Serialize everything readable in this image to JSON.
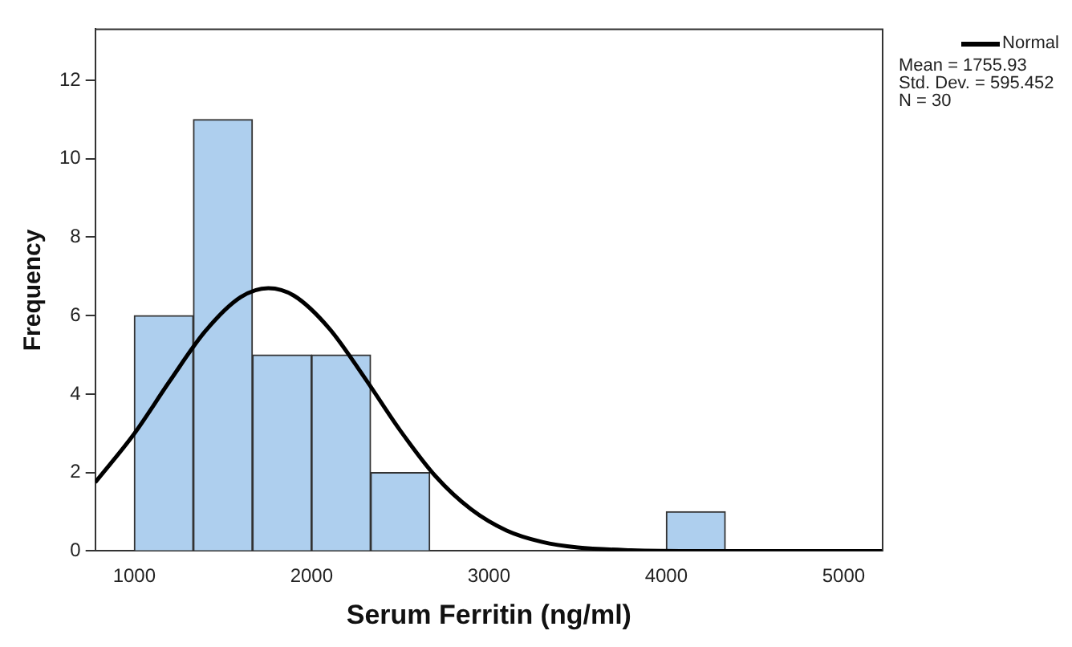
{
  "chart_data": {
    "type": "histogram",
    "xlabel": "Serum Ferritin (ng/ml)",
    "ylabel": "Frequency",
    "bins": [
      1000,
      1333,
      1667,
      2000,
      2333,
      2667,
      3000,
      3333,
      3667,
      4000,
      4333
    ],
    "values": [
      6,
      11,
      5,
      5,
      2,
      0,
      0,
      0,
      0,
      1
    ],
    "color": "#aecfee",
    "series": [
      {
        "type": "line",
        "name": "Normal",
        "color": "#000000",
        "x": [
          780,
          1000,
          1200,
          1400,
          1600,
          1756,
          1900,
          2100,
          2300,
          2500,
          2700,
          2900,
          3100,
          3300,
          3500,
          3800,
          4200,
          4700,
          5220
        ],
        "values": [
          1.75,
          2.99,
          4.33,
          5.6,
          6.47,
          6.7,
          6.51,
          5.67,
          4.41,
          3.07,
          1.9,
          1.06,
          0.52,
          0.23,
          0.09,
          0.02,
          0,
          0,
          0
        ]
      }
    ],
    "xlim": [
      780,
      5220
    ],
    "xticks": [
      1000,
      2000,
      3000,
      4000,
      5000
    ],
    "ylim": [
      0,
      13.3
    ],
    "yticks": [
      0,
      2,
      4,
      6,
      8,
      10,
      12
    ],
    "grid": false,
    "legend": "top right",
    "marker": "none",
    "line_style": "solid",
    "annotations": [
      "Mean = 1755.93",
      "Std. Dev. = 595.452",
      "N = 30"
    ]
  }
}
